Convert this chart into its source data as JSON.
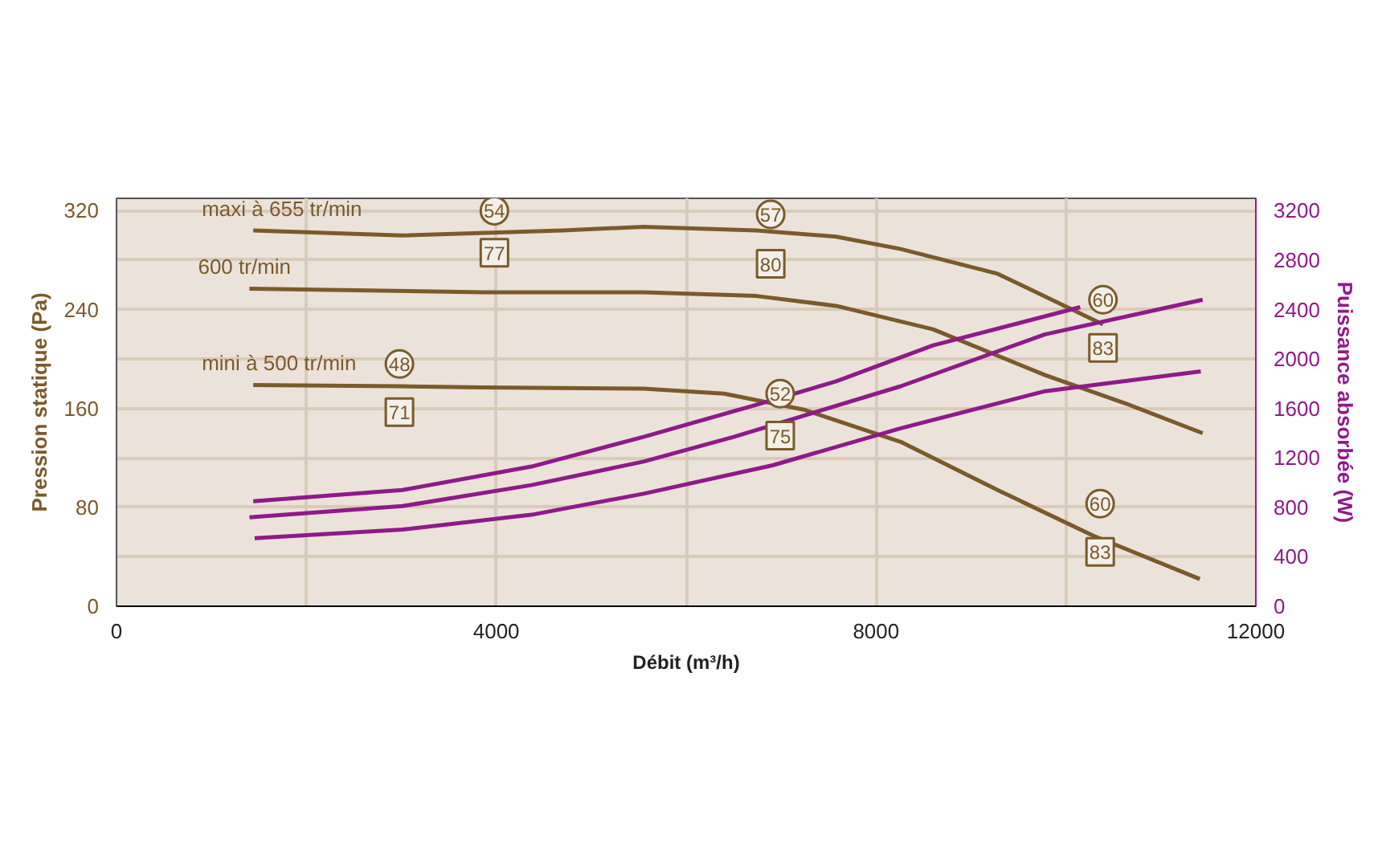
{
  "chart_data": {
    "type": "line",
    "xlabel": "Débit (m³/h)",
    "ylabel": "Pression statique (Pa)",
    "y2label": "Puissance absorbée (W)",
    "xlim": [
      0,
      12000
    ],
    "ylim": [
      0,
      330
    ],
    "y2lim": [
      0,
      3300
    ],
    "xticks": [
      0,
      {
        "value": 2000,
        "label": null
      },
      4000,
      {
        "value": 6000,
        "label": null
      },
      8000,
      {
        "value": 10000,
        "label": null
      },
      12000
    ],
    "yticks": [
      0,
      {
        "value": 40,
        "label": null
      },
      80,
      {
        "value": 120,
        "label": null
      },
      160,
      {
        "value": 200,
        "label": null
      },
      240,
      {
        "value": 280,
        "label": null
      },
      320
    ],
    "y2ticks": [
      0,
      400,
      800,
      1200,
      1600,
      2000,
      2400,
      2800,
      3200
    ],
    "grid": true,
    "line_style": "solid",
    "marker": "none",
    "series": [
      {
        "name": "maxi à 655 tr/min",
        "color": "#7b5a2a",
        "x": [
          1440,
          3010,
          4700,
          5550,
          6740,
          7580,
          8260,
          9280,
          10390
        ],
        "values": [
          304,
          300,
          304,
          307,
          304,
          299,
          289,
          269,
          228
        ]
      },
      {
        "name": "600 tr/min",
        "color": "#7b5a2a",
        "x": [
          1400,
          3860,
          5550,
          6740,
          7580,
          8600,
          9780,
          10630,
          11440
        ],
        "values": [
          257,
          254,
          254,
          251,
          243,
          224,
          187,
          164,
          140
        ]
      },
      {
        "name": "mini à 500 tr/min",
        "color": "#7b5a2a",
        "x": [
          1440,
          2980,
          3860,
          5550,
          6400,
          7240,
          8260,
          9280,
          10290,
          11410
        ],
        "values": [
          179,
          178,
          177,
          176,
          172,
          159,
          133,
          94,
          57,
          22
        ]
      },
      {
        "color": "#8e1a8a",
        "axis": "y2",
        "x": [
          1440,
          3010,
          4370,
          5550,
          6740,
          7580,
          8600,
          10150
        ],
        "values": [
          850,
          940,
          1130,
          1370,
          1630,
          1820,
          2110,
          2420
        ]
      },
      {
        "color": "#8e1a8a",
        "axis": "y2",
        "x": [
          1400,
          3010,
          4370,
          5550,
          6500,
          8260,
          9780,
          11440
        ],
        "values": [
          720,
          810,
          980,
          1170,
          1370,
          1780,
          2200,
          2480
        ]
      },
      {
        "color": "#8e1a8a",
        "axis": "y2",
        "x": [
          1455,
          3010,
          4370,
          5550,
          6910,
          8260,
          9780,
          11420
        ],
        "values": [
          550,
          620,
          740,
          910,
          1140,
          1440,
          1740,
          1900
        ]
      }
    ],
    "annotations": [
      {
        "text": "54",
        "x": 3980,
        "y": 320
      },
      {
        "text": "77",
        "x": 3980,
        "y": 286
      },
      {
        "text": "57",
        "x": 6890,
        "y": 317
      },
      {
        "text": "80",
        "x": 6890,
        "y": 277
      },
      "48",
      "71",
      {
        "text": "52",
        "x": 6990,
        "y": 172
      },
      {
        "text": "75",
        "x": 6990,
        "y": 138
      },
      {
        "text": "60",
        "x": 10390,
        "y": 248
      },
      {
        "text": "83",
        "x": 10390,
        "y": 209
      },
      {
        "text": "60",
        "x": 10360,
        "y": 83
      },
      {
        "text": "83",
        "x": 10360,
        "y": 44
      }
    ]
  }
}
